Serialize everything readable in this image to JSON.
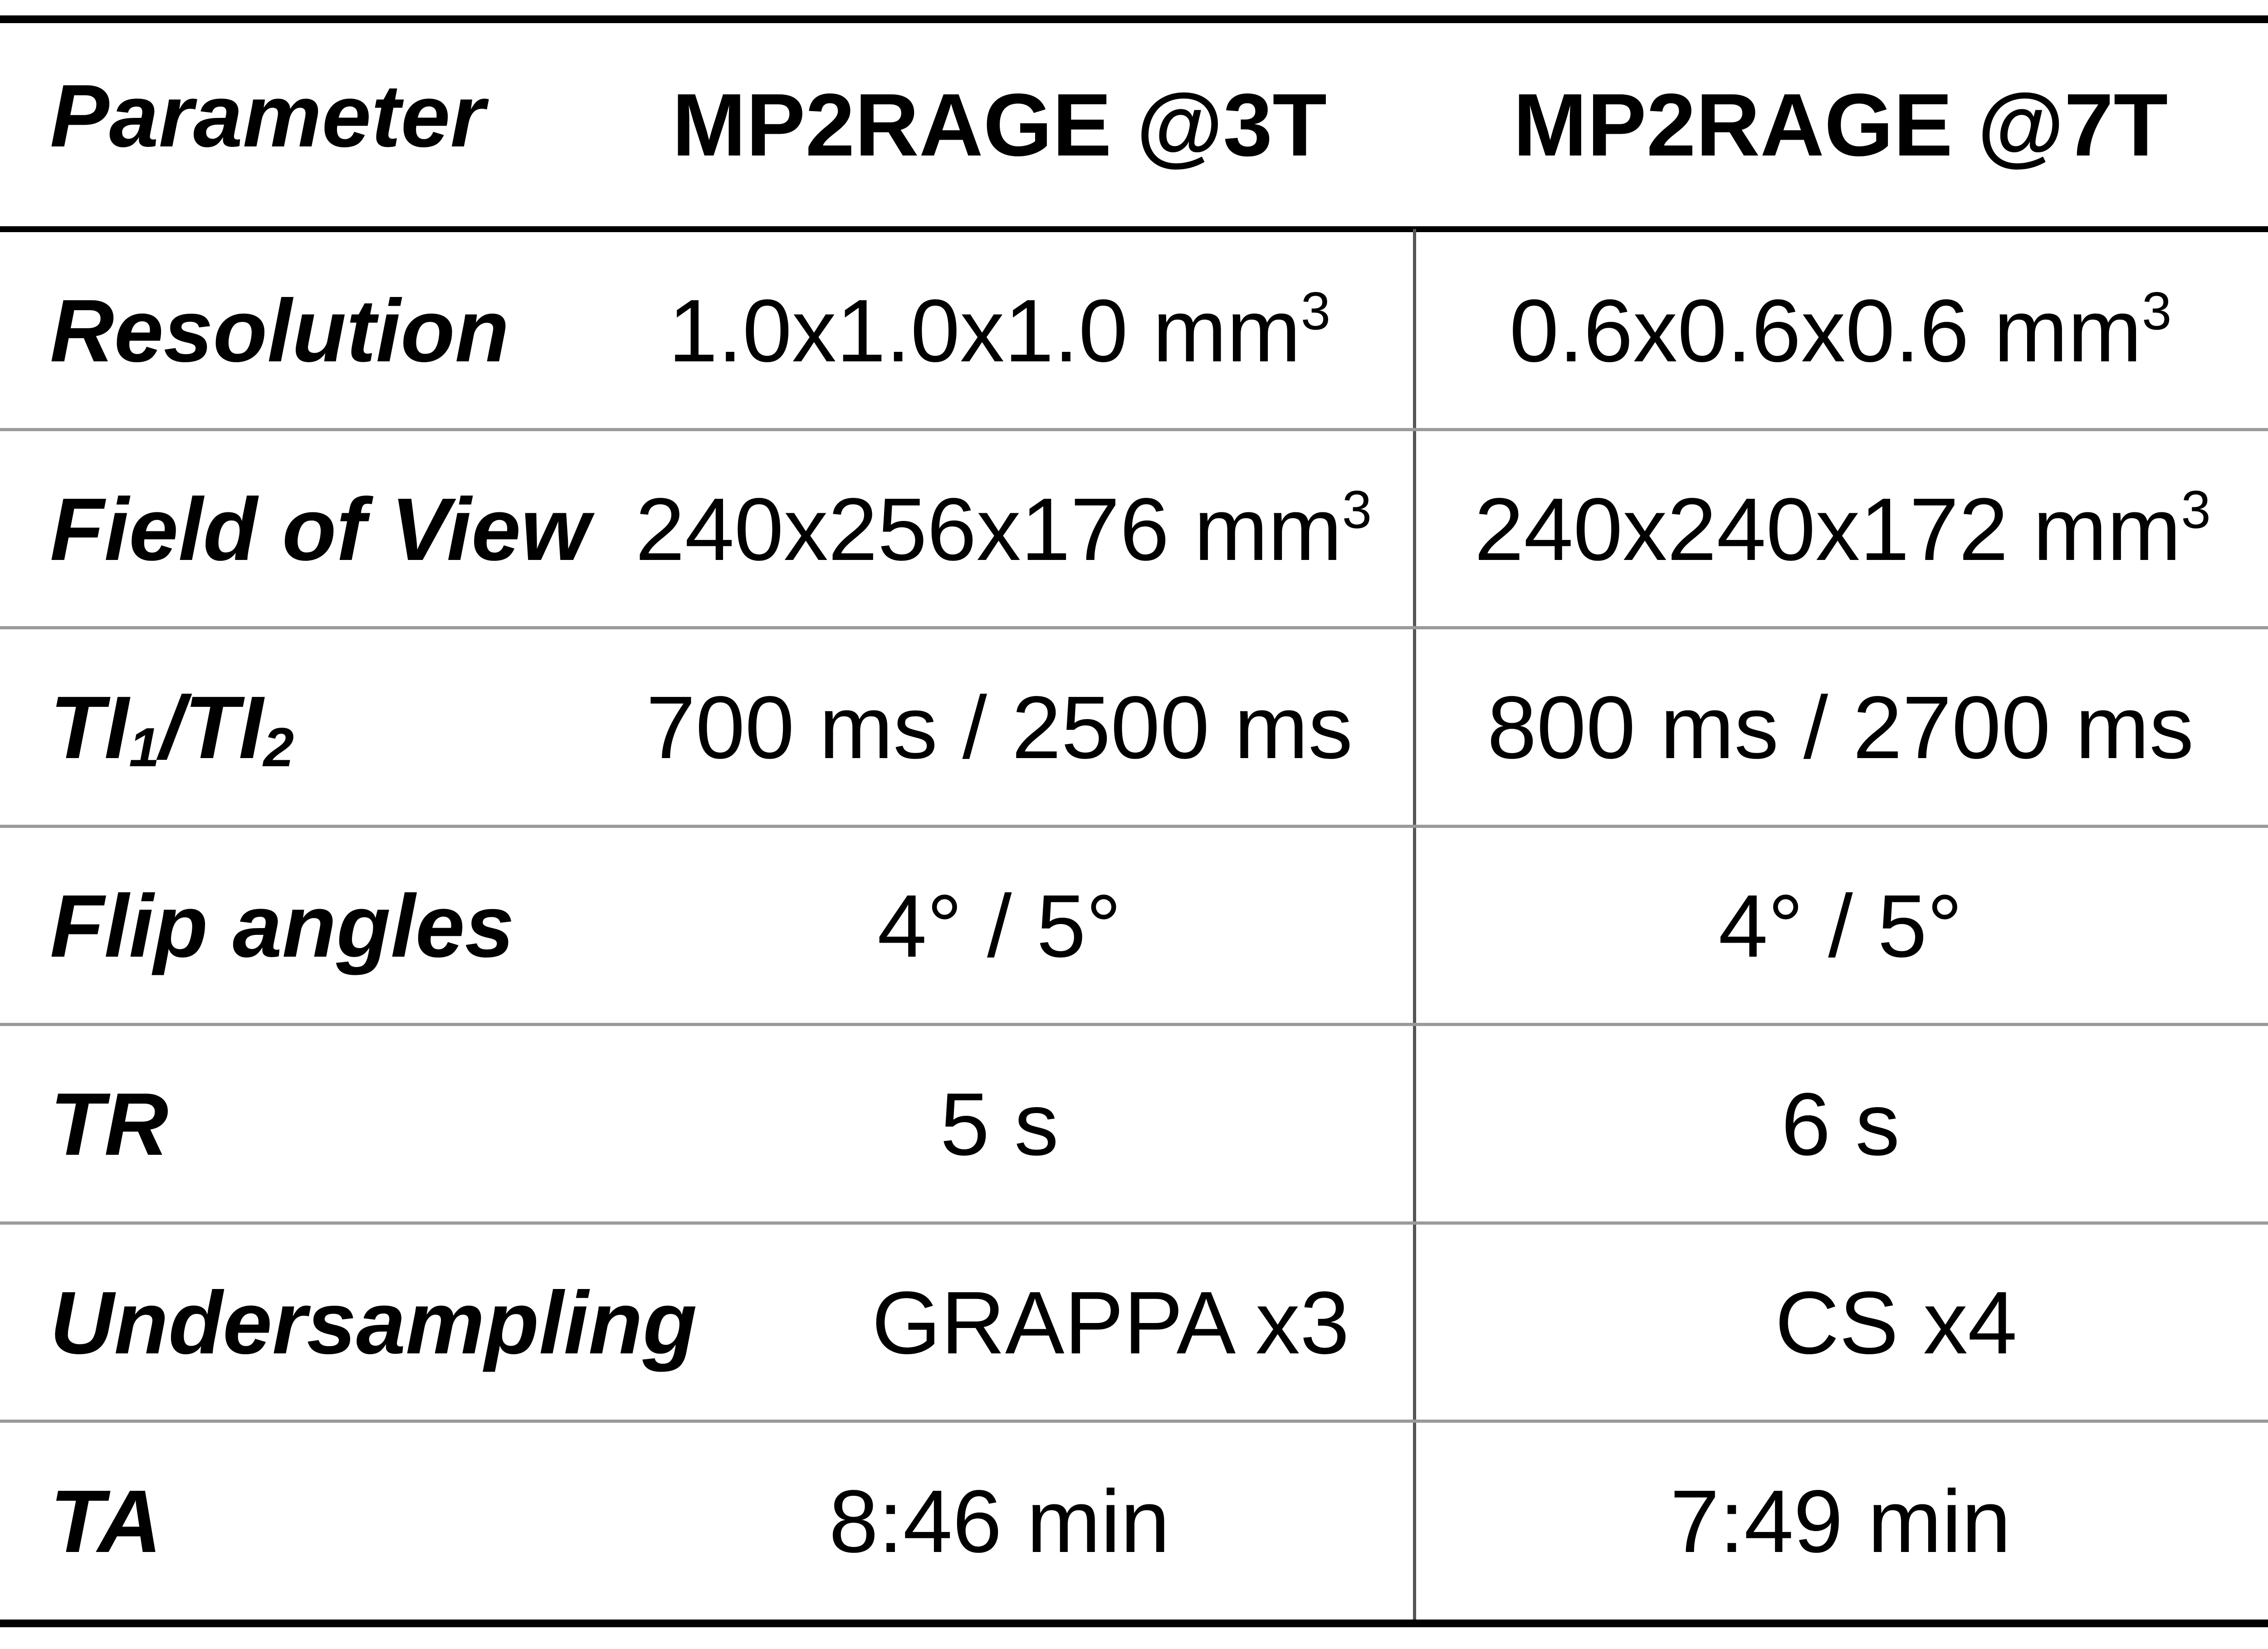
{
  "header": {
    "param": "Parameter",
    "col3t": "MP2RAGE @3T",
    "col7t": "MP2RAGE @7T"
  },
  "rows": [
    {
      "param": "Resolution",
      "v3t": "1.0x1.0x1.0 mm",
      "v3t_sup": "3",
      "v7t": "0.6x0.6x0.6 mm",
      "v7t_sup": "3"
    },
    {
      "param": "Field of View",
      "v3t": "240x256x176 mm",
      "v3t_sup": "3",
      "v7t": "240x240x172 mm",
      "v7t_sup": "3"
    },
    {
      "param_a": "TI",
      "param_a_sub": "1",
      "param_b": "/TI",
      "param_b_sub": "2",
      "v3t": "700 ms / 2500 ms",
      "v7t": "800 ms / 2700 ms"
    },
    {
      "param": "Flip angles",
      "v3t": "4° / 5°",
      "v7t": "4° / 5°"
    },
    {
      "param": "TR",
      "v3t": "5 s",
      "v7t": "6 s"
    },
    {
      "param": "Undersampling",
      "v3t": "GRAPPA x3",
      "v7t": "CS x4"
    },
    {
      "param": "TA",
      "v3t": "8:46 min",
      "v7t": "7:49 min"
    }
  ]
}
